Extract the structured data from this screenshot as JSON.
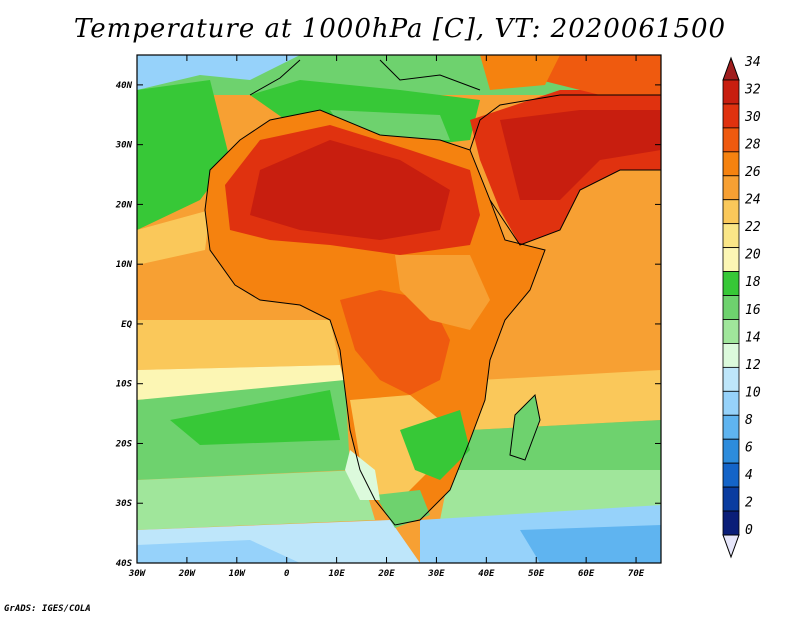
{
  "title": "Temperature at 1000hPa [C], VT: 2020061500",
  "credit": "GrADS: IGES/COLA",
  "map": {
    "lat_range": [
      -40,
      45
    ],
    "lon_range": [
      -30,
      75
    ],
    "lat_ticks": [
      "40N",
      "30N",
      "20N",
      "10N",
      "EQ",
      "10S",
      "20S",
      "30S",
      "40S"
    ],
    "lon_ticks": [
      "30W",
      "20W",
      "10W",
      "0",
      "10E",
      "20E",
      "30E",
      "40E",
      "50E",
      "60E",
      "70E"
    ]
  },
  "colorbar": {
    "labels": [
      "34",
      "32",
      "30",
      "28",
      "26",
      "24",
      "22",
      "20",
      "18",
      "16",
      "14",
      "12",
      "10",
      "8",
      "6",
      "4",
      "2",
      "0"
    ],
    "colors": [
      "#c81e0f",
      "#e0320f",
      "#ef5a0f",
      "#f5820f",
      "#f7a033",
      "#fac85a",
      "#fae687",
      "#fcf6b4",
      "#37c837",
      "#6ed26e",
      "#a0e69b",
      "#dcfadc",
      "#bee6fa",
      "#96d2fa",
      "#5fb4f0",
      "#2d8cdc",
      "#1464c8",
      "#0a3ca0",
      "#0a1e78"
    ],
    "under_color": "#e6e6fa",
    "over_color": "#a01e1e"
  }
}
